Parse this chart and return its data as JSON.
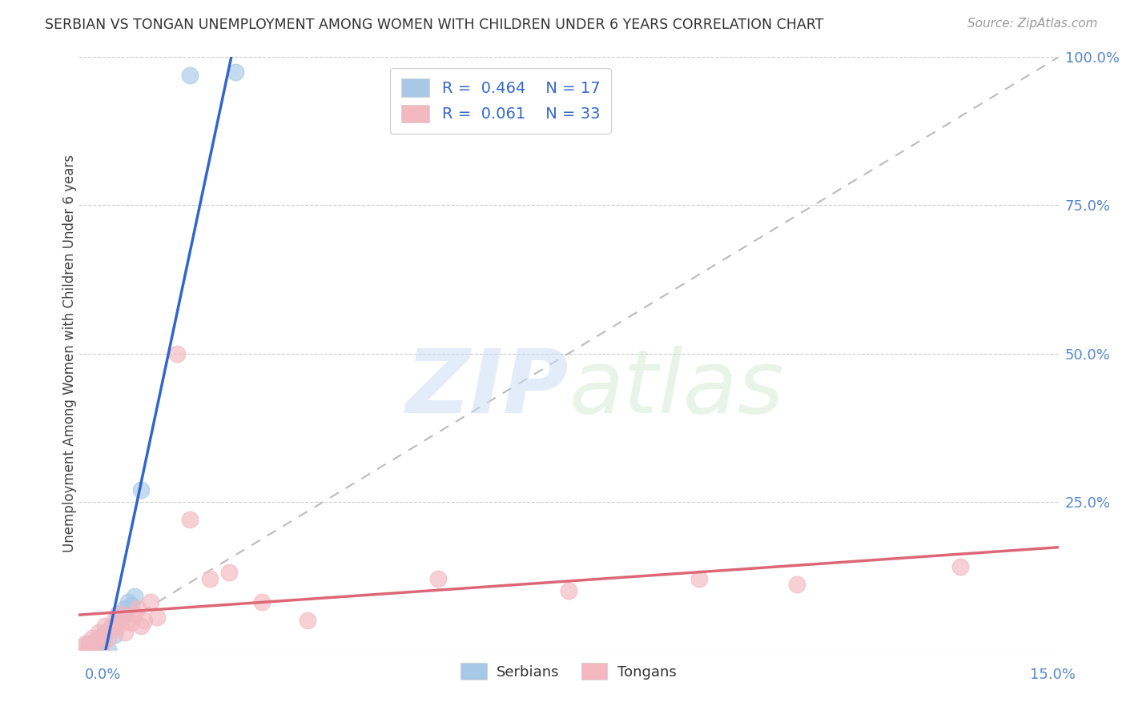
{
  "title": "SERBIAN VS TONGAN UNEMPLOYMENT AMONG WOMEN WITH CHILDREN UNDER 6 YEARS CORRELATION CHART",
  "source": "Source: ZipAtlas.com",
  "ylabel": "Unemployment Among Women with Children Under 6 years",
  "xlim": [
    0.0,
    15.0
  ],
  "ylim": [
    0.0,
    100.0
  ],
  "serbian_color": "#a8c8e8",
  "tongan_color": "#f4b8c0",
  "serbian_line_color": "#3366cc",
  "tongan_line_color": "#dd6677",
  "ref_line_color": "#bbbbbb",
  "background_color": "#ffffff",
  "grid_color": "#cccccc",
  "tick_color": "#5588cc",
  "watermark_color": "#ddeeff",
  "serbian_x": [
    0.15,
    0.25,
    0.3,
    0.35,
    0.4,
    0.45,
    0.5,
    0.55,
    0.6,
    0.65,
    0.7,
    0.75,
    0.8,
    0.85,
    0.95,
    1.7,
    2.4
  ],
  "serbian_y": [
    1.0,
    0.5,
    2.0,
    1.5,
    3.0,
    0.0,
    4.0,
    2.5,
    6.0,
    5.0,
    7.0,
    8.0,
    7.5,
    9.0,
    27.0,
    97.0,
    97.5
  ],
  "tongan_x": [
    0.05,
    0.1,
    0.15,
    0.2,
    0.25,
    0.3,
    0.35,
    0.4,
    0.45,
    0.5,
    0.55,
    0.6,
    0.65,
    0.7,
    0.75,
    0.8,
    0.85,
    0.9,
    0.95,
    1.0,
    1.1,
    1.2,
    1.5,
    1.7,
    2.0,
    2.3,
    2.8,
    3.5,
    5.5,
    7.5,
    9.5,
    11.0,
    13.5
  ],
  "tongan_y": [
    0.5,
    1.0,
    0.0,
    2.0,
    1.5,
    3.0,
    0.5,
    4.0,
    2.0,
    3.5,
    5.0,
    4.0,
    6.0,
    3.0,
    5.0,
    4.5,
    6.0,
    7.0,
    4.0,
    5.0,
    8.0,
    5.5,
    50.0,
    22.0,
    12.0,
    13.0,
    8.0,
    5.0,
    12.0,
    10.0,
    12.0,
    11.0,
    14.0
  ]
}
